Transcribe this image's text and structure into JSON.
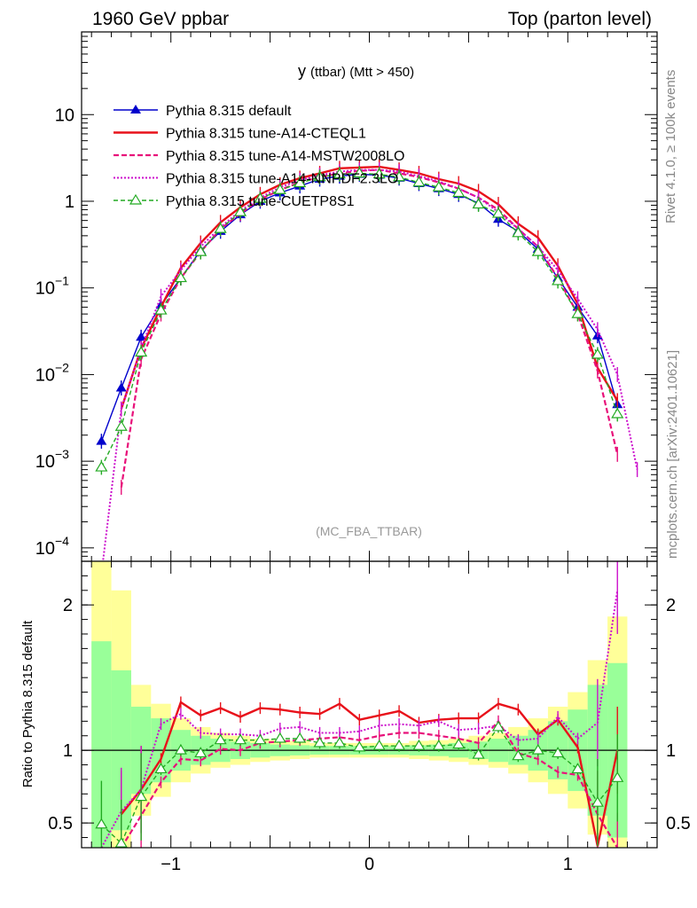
{
  "header": {
    "left": "1960 GeV ppbar",
    "right": "Top (parton level)"
  },
  "side_labels": {
    "rivet": "Rivet 4.1.0, ≥ 100k events",
    "mcplots": "mcplots.cern.ch [arXiv:2401.10621]"
  },
  "chart_data": [
    {
      "type": "line",
      "title": "y (ttbar) (Mtt > 450)",
      "title_main": "y",
      "title_sub": "(ttbar) (Mtt > 450)",
      "watermark": "(MC_FBA_TTBAR)",
      "xlabel": "",
      "ylabel": "",
      "yscale": "log",
      "xlim": [
        -1.45,
        1.45
      ],
      "ylim": [
        7e-05,
        90
      ],
      "yticks": [
        {
          "v": 10,
          "base": "10",
          "exp": ""
        },
        {
          "v": 1,
          "base": "1",
          "exp": ""
        },
        {
          "v": 0.1,
          "base": "10",
          "exp": "−1"
        },
        {
          "v": 0.01,
          "base": "10",
          "exp": "−2"
        },
        {
          "v": 0.001,
          "base": "10",
          "exp": "−3"
        },
        {
          "v": 0.0001,
          "base": "10",
          "exp": "−4"
        }
      ],
      "legend_position": "top-left",
      "series": [
        {
          "name": "Pythia 8.315 default",
          "color": "#0000cc",
          "dash": "",
          "marker": "triangle-filled",
          "width": 1.4,
          "x": [
            -1.35,
            -1.25,
            -1.15,
            -1.05,
            -0.95,
            -0.85,
            -0.75,
            -0.65,
            -0.55,
            -0.45,
            -0.35,
            -0.25,
            -0.15,
            -0.05,
            0.05,
            0.15,
            0.25,
            0.35,
            0.45,
            0.55,
            0.65,
            0.75,
            0.85,
            0.95,
            1.05,
            1.15,
            1.25
          ],
          "values": [
            0.0017,
            0.007,
            0.027,
            0.063,
            0.13,
            0.27,
            0.45,
            0.7,
            1.0,
            1.25,
            1.5,
            1.8,
            1.95,
            2.05,
            2.0,
            1.85,
            1.6,
            1.4,
            1.2,
            0.95,
            0.62,
            0.45,
            0.28,
            0.13,
            0.06,
            0.028,
            0.0045
          ]
        },
        {
          "name": "Pythia 8.315 tune-A14-CTEQL1",
          "color": "#e8111a",
          "dash": "",
          "marker": "none",
          "width": 2.4,
          "x": [
            -1.25,
            -1.15,
            -1.05,
            -0.95,
            -0.85,
            -0.75,
            -0.65,
            -0.55,
            -0.45,
            -0.35,
            -0.25,
            -0.15,
            -0.05,
            0.05,
            0.15,
            0.25,
            0.35,
            0.45,
            0.55,
            0.65,
            0.75,
            0.85,
            0.95,
            1.05,
            1.15,
            1.25
          ],
          "values": [
            0.004,
            0.02,
            0.06,
            0.17,
            0.33,
            0.57,
            0.85,
            1.2,
            1.55,
            1.85,
            2.1,
            2.4,
            2.45,
            2.5,
            2.3,
            2.1,
            1.8,
            1.6,
            1.3,
            0.92,
            0.55,
            0.38,
            0.18,
            0.065,
            0.012,
            0.005
          ]
        },
        {
          "name": "Pythia 8.315 tune-A14-MSTW2008LO",
          "color": "#e8117a",
          "dash": "6,3",
          "marker": "none",
          "width": 2.2,
          "x": [
            -1.25,
            -1.15,
            -1.05,
            -0.95,
            -0.85,
            -0.75,
            -0.65,
            -0.55,
            -0.45,
            -0.35,
            -0.25,
            -0.15,
            -0.05,
            0.05,
            0.15,
            0.25,
            0.35,
            0.45,
            0.55,
            0.65,
            0.75,
            0.85,
            0.95,
            1.05,
            1.15,
            1.25
          ],
          "values": [
            0.0005,
            0.015,
            0.05,
            0.13,
            0.26,
            0.48,
            0.72,
            1.05,
            1.35,
            1.65,
            1.9,
            2.1,
            2.25,
            2.3,
            2.1,
            1.9,
            1.65,
            1.4,
            1.1,
            0.8,
            0.48,
            0.3,
            0.13,
            0.05,
            0.011,
            0.0012
          ]
        },
        {
          "name": "Pythia 8.315 tune-A14-NNPDF2.3LO",
          "color": "#cc11cc",
          "dash": "2,2",
          "marker": "none",
          "width": 2.0,
          "x": [
            -1.35,
            -1.25,
            -1.15,
            -1.05,
            -0.95,
            -0.85,
            -0.75,
            -0.65,
            -0.55,
            -0.45,
            -0.35,
            -0.25,
            -0.15,
            -0.05,
            0.05,
            0.15,
            0.25,
            0.35,
            0.45,
            0.55,
            0.65,
            0.75,
            0.85,
            0.95,
            1.05,
            1.15,
            1.25,
            1.35
          ],
          "values": [
            5e-05,
            0.004,
            0.02,
            0.08,
            0.16,
            0.3,
            0.5,
            0.78,
            1.1,
            1.45,
            1.75,
            2.0,
            2.2,
            2.3,
            2.3,
            2.2,
            1.95,
            1.7,
            1.4,
            1.1,
            0.75,
            0.48,
            0.3,
            0.16,
            0.075,
            0.033,
            0.01,
            0.0008
          ]
        },
        {
          "name": "Pythia 8.315 tune-CUETP8S1",
          "color": "#22aa22",
          "dash": "5,3",
          "marker": "triangle-open",
          "width": 1.4,
          "x": [
            -1.35,
            -1.25,
            -1.15,
            -1.05,
            -0.95,
            -0.85,
            -0.75,
            -0.65,
            -0.55,
            -0.45,
            -0.35,
            -0.25,
            -0.15,
            -0.05,
            0.05,
            0.15,
            0.25,
            0.35,
            0.45,
            0.55,
            0.65,
            0.75,
            0.85,
            0.95,
            1.05,
            1.15,
            1.25
          ],
          "values": [
            0.00085,
            0.0025,
            0.018,
            0.055,
            0.13,
            0.26,
            0.48,
            0.75,
            1.07,
            1.35,
            1.62,
            1.9,
            2.05,
            2.1,
            2.05,
            1.9,
            1.65,
            1.45,
            1.25,
            0.92,
            0.72,
            0.43,
            0.26,
            0.12,
            0.05,
            0.017,
            0.0035
          ]
        }
      ]
    },
    {
      "type": "line",
      "title": "",
      "xlabel": "",
      "ylabel": "Ratio to Pythia 8.315 default",
      "xlim": [
        -1.45,
        1.45
      ],
      "ylim": [
        0.33,
        2.3
      ],
      "yticks": [
        {
          "v": 2,
          "label": "2"
        },
        {
          "v": 1,
          "label": "1"
        },
        {
          "v": 0.5,
          "label": "0.5"
        }
      ],
      "xticks": [
        {
          "v": -1,
          "label": "−1"
        },
        {
          "v": 0,
          "label": "0"
        },
        {
          "v": 1,
          "label": "1"
        }
      ],
      "bands": {
        "x_edges": [
          -1.4,
          -1.3,
          -1.2,
          -1.1,
          -1.0,
          -0.9,
          -0.8,
          -0.7,
          -0.6,
          -0.5,
          -0.4,
          -0.3,
          -0.2,
          -0.1,
          0.0,
          0.1,
          0.2,
          0.3,
          0.4,
          0.5,
          0.6,
          0.7,
          0.8,
          0.9,
          1.0,
          1.1,
          1.2,
          1.3
        ],
        "inner_color": "#99ff99",
        "outer_color": "#ffff99",
        "inner_lo": [
          0.25,
          0.45,
          0.7,
          0.78,
          0.86,
          0.9,
          0.92,
          0.94,
          0.95,
          0.96,
          0.965,
          0.97,
          0.97,
          0.97,
          0.97,
          0.97,
          0.965,
          0.96,
          0.95,
          0.94,
          0.92,
          0.9,
          0.86,
          0.8,
          0.72,
          0.55,
          0.4
        ],
        "inner_hi": [
          1.75,
          1.55,
          1.3,
          1.22,
          1.14,
          1.1,
          1.08,
          1.06,
          1.05,
          1.04,
          1.035,
          1.03,
          1.03,
          1.03,
          1.03,
          1.03,
          1.035,
          1.04,
          1.05,
          1.06,
          1.08,
          1.1,
          1.14,
          1.2,
          1.28,
          1.45,
          1.6
        ],
        "outer_lo": [
          0.1,
          0.3,
          0.55,
          0.68,
          0.78,
          0.84,
          0.88,
          0.9,
          0.92,
          0.93,
          0.94,
          0.95,
          0.95,
          0.95,
          0.95,
          0.95,
          0.94,
          0.93,
          0.92,
          0.9,
          0.88,
          0.84,
          0.78,
          0.7,
          0.6,
          0.42,
          0.25
        ],
        "outer_hi": [
          2.3,
          2.1,
          1.45,
          1.32,
          1.22,
          1.16,
          1.12,
          1.1,
          1.08,
          1.07,
          1.065,
          1.05,
          1.05,
          1.05,
          1.05,
          1.05,
          1.065,
          1.07,
          1.08,
          1.1,
          1.12,
          1.16,
          1.22,
          1.3,
          1.4,
          1.62,
          1.92
        ]
      },
      "series": [
        {
          "name": "tune-A14-CTEQL1",
          "color": "#e8111a",
          "dash": "",
          "marker": "none",
          "width": 2.4,
          "x": [
            -1.25,
            -1.15,
            -1.05,
            -0.95,
            -0.85,
            -0.75,
            -0.65,
            -0.55,
            -0.45,
            -0.35,
            -0.25,
            -0.15,
            -0.05,
            0.05,
            0.15,
            0.25,
            0.35,
            0.45,
            0.55,
            0.65,
            0.75,
            0.85,
            0.95,
            1.05,
            1.15,
            1.25
          ],
          "values": [
            0.56,
            0.73,
            0.94,
            1.33,
            1.24,
            1.29,
            1.23,
            1.29,
            1.28,
            1.26,
            1.25,
            1.32,
            1.21,
            1.24,
            1.27,
            1.19,
            1.21,
            1.22,
            1.22,
            1.32,
            1.28,
            1.11,
            1.21,
            1.02,
            0.34,
            1.0
          ]
        },
        {
          "name": "tune-A14-MSTW2008LO",
          "color": "#e8117a",
          "dash": "6,3",
          "marker": "none",
          "width": 2.2,
          "x": [
            -1.25,
            -1.15,
            -1.05,
            -0.95,
            -0.85,
            -0.75,
            -0.65,
            -0.55,
            -0.45,
            -0.35,
            -0.25,
            -0.15,
            -0.05,
            0.05,
            0.15,
            0.25,
            0.35,
            0.45,
            0.55,
            0.65,
            0.75,
            0.85,
            0.95,
            1.05,
            1.15,
            1.25
          ],
          "values": [
            0.08,
            0.55,
            0.78,
            0.94,
            0.93,
            1.01,
            1.0,
            1.05,
            1.06,
            1.07,
            1.08,
            1.09,
            1.07,
            1.1,
            1.12,
            1.12,
            1.1,
            1.08,
            1.05,
            1.2,
            0.98,
            0.94,
            0.85,
            0.83,
            0.56,
            0.27
          ]
        },
        {
          "name": "tune-A14-NNPDF2.3LO",
          "color": "#cc11cc",
          "dash": "2,2",
          "marker": "none",
          "width": 2.0,
          "x": [
            -1.35,
            -1.25,
            -1.15,
            -1.05,
            -0.95,
            -0.85,
            -0.75,
            -0.65,
            -0.55,
            -0.45,
            -0.35,
            -0.25,
            -0.15,
            -0.05,
            0.05,
            0.15,
            0.25,
            0.35,
            0.45,
            0.55,
            0.65,
            0.75,
            0.85,
            0.95,
            1.05,
            1.15,
            1.25
          ],
          "values": [
            0.03,
            0.58,
            0.73,
            1.18,
            1.25,
            1.12,
            1.11,
            1.11,
            1.1,
            1.15,
            1.16,
            1.12,
            1.12,
            1.13,
            1.17,
            1.18,
            1.17,
            1.2,
            1.14,
            1.15,
            1.17,
            1.07,
            1.08,
            1.23,
            1.08,
            1.19,
            2.1
          ]
        },
        {
          "name": "tune-CUETP8S1",
          "color": "#22aa22",
          "dash": "5,3",
          "marker": "triangle-open",
          "width": 1.4,
          "x": [
            -1.35,
            -1.25,
            -1.15,
            -1.05,
            -0.95,
            -0.85,
            -0.75,
            -0.65,
            -0.55,
            -0.45,
            -0.35,
            -0.25,
            -0.15,
            -0.05,
            0.05,
            0.15,
            0.25,
            0.35,
            0.45,
            0.55,
            0.65,
            0.75,
            0.85,
            0.95,
            1.05,
            1.15,
            1.25
          ],
          "values": [
            0.49,
            0.36,
            0.68,
            0.87,
            1.0,
            0.98,
            1.07,
            1.07,
            1.07,
            1.08,
            1.08,
            1.05,
            1.05,
            1.02,
            1.03,
            1.03,
            1.03,
            1.03,
            1.04,
            0.97,
            1.16,
            0.96,
            1.0,
            0.98,
            0.87,
            0.64,
            0.81
          ]
        }
      ]
    }
  ]
}
